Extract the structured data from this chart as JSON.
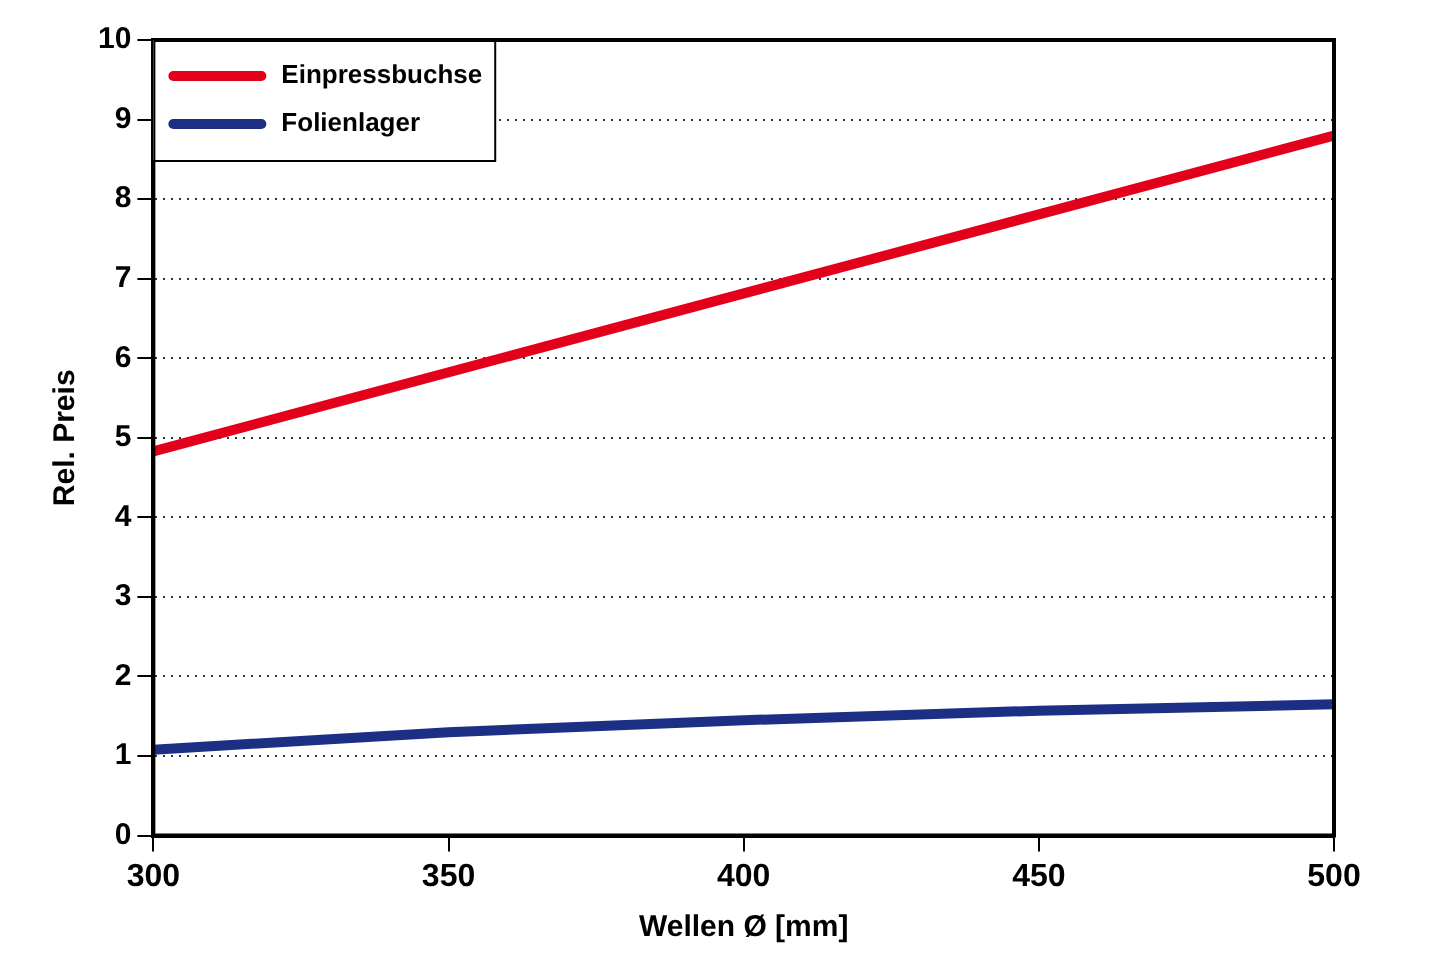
{
  "chart_data": {
    "type": "line",
    "xlabel": "Wellen Ø [mm]",
    "ylabel": "Rel. Preis",
    "series": [
      {
        "name": "Einpressbuchse",
        "color": "#e2001a",
        "x": [
          300,
          500
        ],
        "values": [
          4.83,
          8.8
        ]
      },
      {
        "name": "Folienlager",
        "color": "#1d2e85",
        "x": [
          300,
          350,
          400,
          450,
          500
        ],
        "values": [
          1.08,
          1.3,
          1.45,
          1.57,
          1.65
        ]
      }
    ],
    "xlim": [
      300,
      500
    ],
    "xticks": [
      300,
      350,
      400,
      450,
      500
    ],
    "ylim": [
      0,
      10
    ],
    "yticks": [
      0,
      1,
      2,
      3,
      4,
      5,
      6,
      7,
      8,
      9,
      10
    ],
    "grid": "y",
    "legend": "top left",
    "marker": "none",
    "line_style": "solid"
  }
}
